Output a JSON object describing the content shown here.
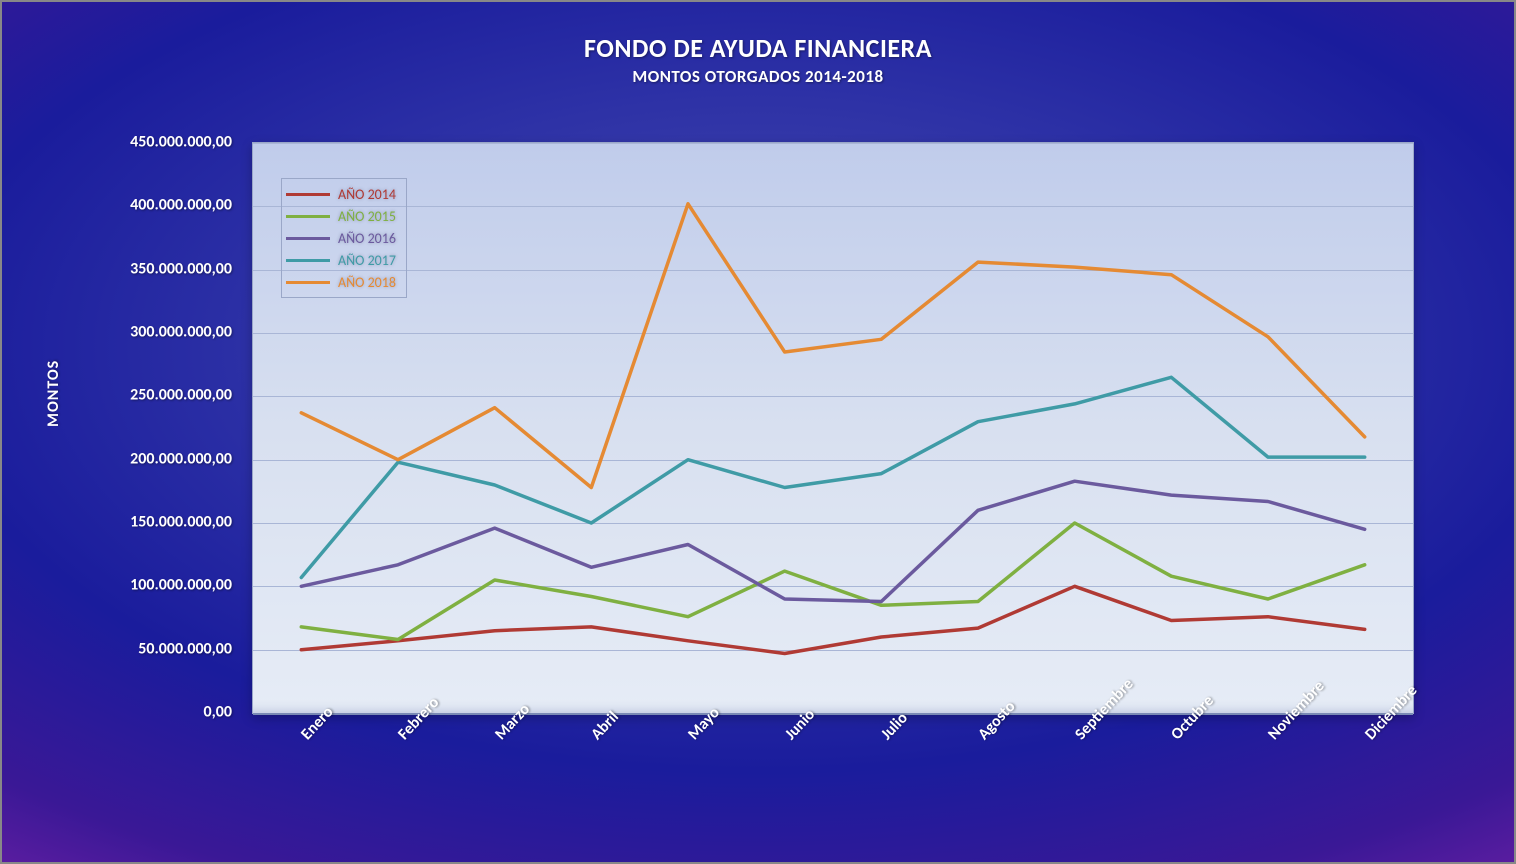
{
  "chart": {
    "type": "line",
    "title": "FONDO DE AYUDA FINANCIERA",
    "subtitle": "MONTOS OTORGADOS 2014-2018",
    "title_color": "#ffffff",
    "title_fontsize": 26,
    "subtitle_fontsize": 17,
    "y_axis_title": "MONTOS",
    "background_outer": "radial-gradient blue/purple",
    "plot_background": "linear-gradient #c0cceb→#e6ecf6",
    "grid_color": "#a9b6d6",
    "line_width": 3.5,
    "ylim": [
      0,
      450000000
    ],
    "ytick_step": 50000000,
    "ytick_labels": [
      "0,00",
      "50.000.000,00",
      "100.000.000,00",
      "150.000.000,00",
      "200.000.000,00",
      "250.000.000,00",
      "300.000.000,00",
      "350.000.000,00",
      "400.000.000,00",
      "450.000.000,00"
    ],
    "categories": [
      "Enero",
      "Febrero",
      "Marzo",
      "Abril",
      "Mayo",
      "Junio",
      "Julio",
      "Agosto",
      "Septiembre",
      "Octubre",
      "Noviembre",
      "Diciembre"
    ],
    "legend": {
      "position": "upper-left-inside-plot",
      "border_color": "#9aa7c8"
    },
    "series": [
      {
        "name": "AÑO 2014",
        "color": "#b03a34",
        "values": [
          50000000,
          57000000,
          65000000,
          68000000,
          57000000,
          47000000,
          60000000,
          67000000,
          100000000,
          73000000,
          76000000,
          66000000
        ]
      },
      {
        "name": "AÑO 2015",
        "color": "#7fb041",
        "values": [
          68000000,
          58000000,
          105000000,
          92000000,
          76000000,
          112000000,
          85000000,
          88000000,
          150000000,
          108000000,
          90000000,
          117000000
        ]
      },
      {
        "name": "AÑO 2016",
        "color": "#6b5a9e",
        "values": [
          100000000,
          117000000,
          146000000,
          115000000,
          133000000,
          90000000,
          88000000,
          160000000,
          183000000,
          172000000,
          167000000,
          145000000
        ]
      },
      {
        "name": "AÑO 2017",
        "color": "#3f9ba6",
        "values": [
          107000000,
          198000000,
          180000000,
          150000000,
          200000000,
          178000000,
          189000000,
          230000000,
          244000000,
          265000000,
          202000000,
          202000000
        ]
      },
      {
        "name": "AÑO 2018",
        "color": "#e58a33",
        "values": [
          237000000,
          200000000,
          241000000,
          178000000,
          402000000,
          285000000,
          295000000,
          356000000,
          352000000,
          346000000,
          297000000,
          218000000
        ]
      }
    ]
  }
}
